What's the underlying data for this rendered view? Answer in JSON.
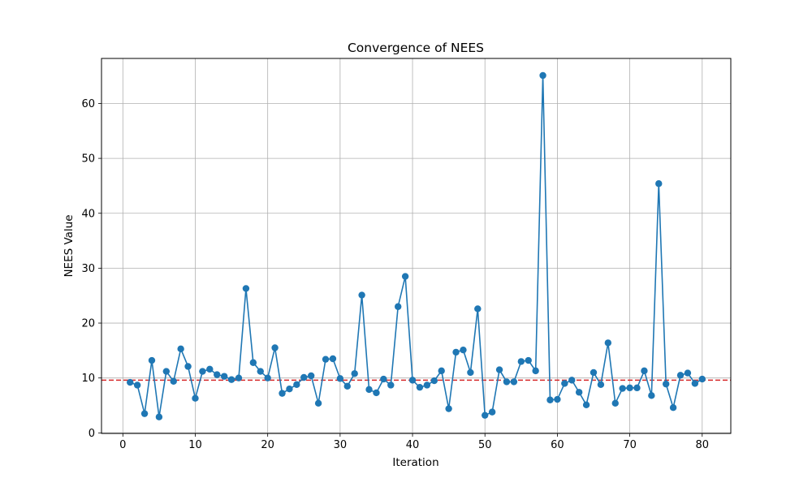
{
  "chart_data": {
    "type": "line",
    "title": "Convergence of NEES",
    "xlabel": "Iteration",
    "ylabel": "NEES Value",
    "xlim": [
      -2.95,
      83.95
    ],
    "ylim": [
      -0.1,
      68.2
    ],
    "x_ticks": [
      0,
      10,
      20,
      30,
      40,
      50,
      60,
      70,
      80
    ],
    "y_ticks": [
      0,
      10,
      20,
      30,
      40,
      50,
      60
    ],
    "grid": true,
    "series": [
      {
        "style": "line-with-circle-markers",
        "color": "#1f77b4",
        "x": [
          1,
          2,
          3,
          4,
          5,
          6,
          7,
          8,
          9,
          10,
          11,
          12,
          13,
          14,
          15,
          16,
          17,
          18,
          19,
          20,
          21,
          22,
          23,
          24,
          25,
          26,
          27,
          28,
          29,
          30,
          31,
          32,
          33,
          34,
          35,
          36,
          37,
          38,
          39,
          40,
          41,
          42,
          43,
          44,
          45,
          46,
          47,
          48,
          49,
          50,
          51,
          52,
          53,
          54,
          55,
          56,
          57,
          58,
          59,
          60,
          61,
          62,
          63,
          64,
          65,
          66,
          67,
          68,
          69,
          70,
          71,
          72,
          73,
          74,
          75,
          76,
          77,
          78,
          79,
          80
        ],
        "values": [
          9.2,
          8.7,
          3.5,
          13.2,
          2.9,
          11.2,
          9.4,
          15.3,
          12.1,
          6.3,
          11.2,
          11.6,
          10.6,
          10.3,
          9.7,
          10.0,
          26.3,
          12.8,
          11.2,
          10.0,
          15.5,
          7.2,
          8.0,
          8.8,
          10.1,
          10.4,
          5.4,
          13.4,
          13.5,
          9.9,
          8.5,
          10.8,
          25.1,
          7.9,
          7.3,
          9.8,
          8.7,
          23.0,
          28.5,
          9.6,
          8.3,
          8.7,
          9.5,
          11.3,
          4.4,
          14.7,
          15.1,
          11.0,
          22.6,
          3.2,
          3.8,
          11.5,
          9.3,
          9.3,
          13.0,
          13.2,
          11.3,
          65.1,
          6.0,
          6.1,
          9.0,
          9.6,
          7.4,
          5.1,
          11.0,
          8.8,
          16.4,
          5.4,
          8.1,
          8.2,
          8.2,
          11.3,
          6.8,
          45.4,
          8.9,
          4.6,
          10.5,
          10.9,
          9.0,
          9.8
        ]
      }
    ],
    "reference_lines": [
      {
        "orientation": "horizontal",
        "y": 9.6,
        "style": "dashed",
        "color": "#d62728"
      }
    ]
  }
}
